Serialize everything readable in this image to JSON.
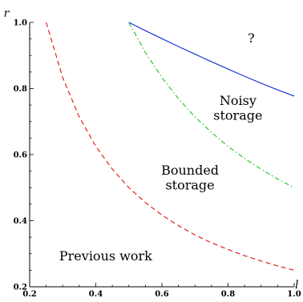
{
  "chart_data": {
    "type": "line",
    "xlabel": "l",
    "ylabel": "r",
    "xlim": [
      0.2,
      1.0
    ],
    "ylim": [
      0.2,
      1.0
    ],
    "x_ticks": [
      "0.2",
      "0.4",
      "0.6",
      "0.8",
      "1.0"
    ],
    "y_ticks": [
      "0.2",
      "0.4",
      "0.6",
      "0.8",
      "1.0"
    ],
    "grid": false,
    "series": [
      {
        "style": "dashed",
        "color": "#e0221c",
        "x": [
          0.25,
          0.3,
          0.35,
          0.4,
          0.45,
          0.5,
          0.55,
          0.6,
          0.65,
          0.7,
          0.75,
          0.8,
          0.85,
          0.9,
          0.95,
          1.0
        ],
        "y": [
          1.0,
          0.833,
          0.714,
          0.625,
          0.556,
          0.5,
          0.455,
          0.417,
          0.385,
          0.357,
          0.333,
          0.313,
          0.294,
          0.278,
          0.263,
          0.25
        ]
      },
      {
        "style": "dash-dot",
        "color": "#2ec82e",
        "x": [
          0.5,
          0.55,
          0.6,
          0.65,
          0.7,
          0.75,
          0.8,
          0.85,
          0.9,
          0.95,
          1.0
        ],
        "y": [
          1.0,
          0.909,
          0.833,
          0.769,
          0.714,
          0.667,
          0.625,
          0.588,
          0.556,
          0.526,
          0.5
        ]
      },
      {
        "style": "solid",
        "color": "#1f35d6",
        "x": [
          0.5,
          0.55,
          0.6,
          0.65,
          0.7,
          0.75,
          0.8,
          0.85,
          0.9,
          0.95,
          1.0
        ],
        "y": [
          1.0,
          0.975,
          0.951,
          0.927,
          0.904,
          0.881,
          0.859,
          0.837,
          0.816,
          0.796,
          0.777
        ]
      }
    ],
    "annotations": [
      {
        "text": "?",
        "x": 0.87,
        "y": 0.94
      },
      {
        "text": "Noisy",
        "x": 0.83,
        "y": 0.75
      },
      {
        "text": "storage",
        "x": 0.83,
        "y": 0.705
      },
      {
        "text": "Bounded",
        "x": 0.685,
        "y": 0.54
      },
      {
        "text": "storage",
        "x": 0.685,
        "y": 0.495
      },
      {
        "text": "Previous work",
        "x": 0.43,
        "y": 0.28
      }
    ]
  }
}
